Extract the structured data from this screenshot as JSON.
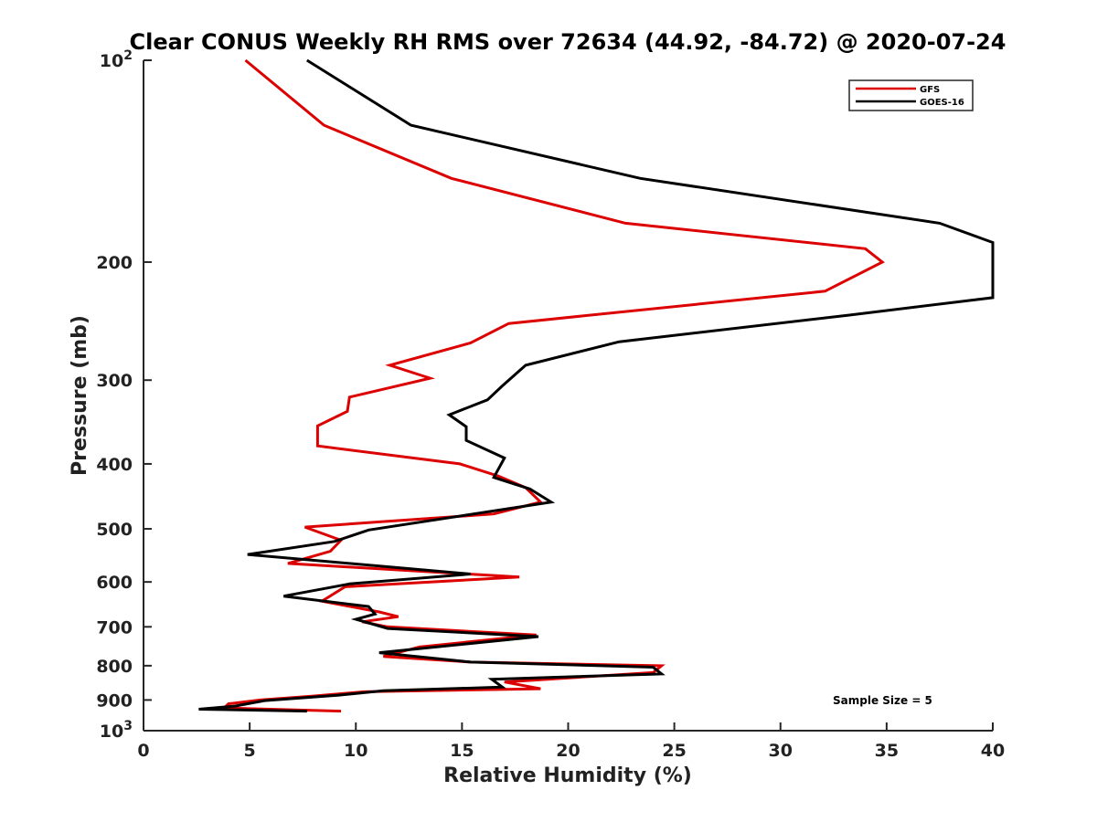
{
  "chart_data": {
    "type": "line",
    "title": "Clear CONUS Weekly RH RMS over 72634 (44.92, -84.72) @ 2020-07-24",
    "xlabel": "Relative Humidity (%)",
    "ylabel": "Pressure (mb)",
    "xlim": [
      0,
      40
    ],
    "ylim": [
      100,
      1000
    ],
    "yscale": "log",
    "y_reversed": true,
    "x_ticks": [
      0,
      5,
      10,
      15,
      20,
      25,
      30,
      35,
      40
    ],
    "x_tick_labels": [
      "0",
      "5",
      "10",
      "15",
      "20",
      "25",
      "30",
      "35",
      "40"
    ],
    "y_ticks": [
      100,
      200,
      300,
      400,
      500,
      600,
      700,
      800,
      900,
      1000
    ],
    "y_tick_labels": [
      {
        "base": "10",
        "exp": "2"
      },
      {
        "base": "200"
      },
      {
        "base": "300"
      },
      {
        "base": "400"
      },
      {
        "base": "500"
      },
      {
        "base": "600"
      },
      {
        "base": "700"
      },
      {
        "base": "800"
      },
      {
        "base": "900"
      },
      {
        "base": "10",
        "exp": "3"
      }
    ],
    "grid": false,
    "legend_position": "top-right",
    "annotation": "Sample Size = 5",
    "series": [
      {
        "name": "GFS",
        "color": "#dd0000",
        "points": [
          [
            4.8,
            100
          ],
          [
            8.5,
            125
          ],
          [
            14.5,
            150
          ],
          [
            22.7,
            175
          ],
          [
            34.0,
            191
          ],
          [
            34.8,
            200
          ],
          [
            32.1,
            221
          ],
          [
            17.2,
            247
          ],
          [
            15.4,
            264
          ],
          [
            11.6,
            285
          ],
          [
            13.5,
            298
          ],
          [
            9.7,
            318
          ],
          [
            9.6,
            334
          ],
          [
            8.2,
            351
          ],
          [
            8.2,
            376
          ],
          [
            14.9,
            400
          ],
          [
            16.7,
            417
          ],
          [
            18.0,
            434
          ],
          [
            18.7,
            456
          ],
          [
            16.5,
            475
          ],
          [
            7.6,
            497
          ],
          [
            9.3,
            520
          ],
          [
            8.8,
            540
          ],
          [
            6.8,
            563
          ],
          [
            17.7,
            590
          ],
          [
            9.5,
            610
          ],
          [
            8.4,
            641
          ],
          [
            11.1,
            665
          ],
          [
            12.0,
            676
          ],
          [
            10.3,
            688
          ],
          [
            11.5,
            700
          ],
          [
            18.5,
            720
          ],
          [
            13.0,
            750
          ],
          [
            11.3,
            775
          ],
          [
            15.4,
            790
          ],
          [
            24.4,
            800
          ],
          [
            24.0,
            819
          ],
          [
            17.0,
            846
          ],
          [
            18.7,
            866
          ],
          [
            10.4,
            875
          ],
          [
            8.0,
            888
          ],
          [
            5.5,
            900
          ],
          [
            4.0,
            912
          ],
          [
            3.8,
            925
          ],
          [
            9.3,
            935
          ]
        ]
      },
      {
        "name": "GOES-16",
        "color": "#000000",
        "points": [
          [
            7.7,
            100
          ],
          [
            12.6,
            125
          ],
          [
            23.4,
            150
          ],
          [
            37.5,
            175
          ],
          [
            40.0,
            187
          ],
          [
            40.0,
            226
          ],
          [
            33.2,
            240
          ],
          [
            22.4,
            263
          ],
          [
            18.0,
            285
          ],
          [
            16.9,
            306
          ],
          [
            16.2,
            321
          ],
          [
            14.4,
            338
          ],
          [
            15.2,
            352
          ],
          [
            15.2,
            369
          ],
          [
            17.0,
            392
          ],
          [
            16.5,
            419
          ],
          [
            18.2,
            436
          ],
          [
            19.2,
            456
          ],
          [
            10.6,
            502
          ],
          [
            9.0,
            522
          ],
          [
            4.9,
            546
          ],
          [
            15.4,
            584
          ],
          [
            9.7,
            604
          ],
          [
            6.6,
            630
          ],
          [
            10.6,
            653
          ],
          [
            10.9,
            670
          ],
          [
            10.0,
            682
          ],
          [
            11.5,
            704
          ],
          [
            18.6,
            724
          ],
          [
            11.1,
            765
          ],
          [
            15.4,
            790
          ],
          [
            24.0,
            804
          ],
          [
            24.4,
            823
          ],
          [
            16.4,
            838
          ],
          [
            16.9,
            861
          ],
          [
            11.3,
            872
          ],
          [
            9.2,
            885
          ],
          [
            5.7,
            902
          ],
          [
            4.3,
            919
          ],
          [
            2.6,
            929
          ],
          [
            7.7,
            935
          ]
        ]
      }
    ]
  }
}
